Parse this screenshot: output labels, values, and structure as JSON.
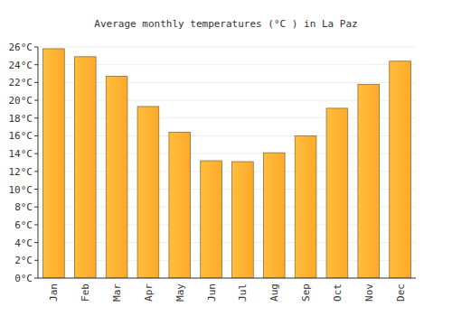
{
  "chart_data": {
    "type": "bar",
    "title": "Average monthly temperatures (°C ) in La Paz",
    "categories": [
      "Jan",
      "Feb",
      "Mar",
      "Apr",
      "May",
      "Jun",
      "Jul",
      "Aug",
      "Sep",
      "Oct",
      "Nov",
      "Dec"
    ],
    "values": [
      25.8,
      24.9,
      22.7,
      19.3,
      16.4,
      13.2,
      13.1,
      14.1,
      16.0,
      19.1,
      21.8,
      24.4
    ],
    "color": "#fda92c",
    "ylim": [
      0,
      26
    ],
    "yticks": [
      {
        "value": 0,
        "label": "0°C"
      },
      {
        "value": 2,
        "label": "2°C"
      },
      {
        "value": 4,
        "label": "4°C"
      },
      {
        "value": 6,
        "label": "6°C"
      },
      {
        "value": 8,
        "label": "8°C"
      },
      {
        "value": 10,
        "label": "10°C"
      },
      {
        "value": 12,
        "label": "12°C"
      },
      {
        "value": 14,
        "label": "14°C"
      },
      {
        "value": 16,
        "label": "16°C"
      },
      {
        "value": 18,
        "label": "18°C"
      },
      {
        "value": 20,
        "label": "20°C"
      },
      {
        "value": 22,
        "label": "22°C"
      },
      {
        "value": 24,
        "label": "24°C"
      },
      {
        "value": 26,
        "label": "26°C"
      }
    ],
    "grid": true
  }
}
